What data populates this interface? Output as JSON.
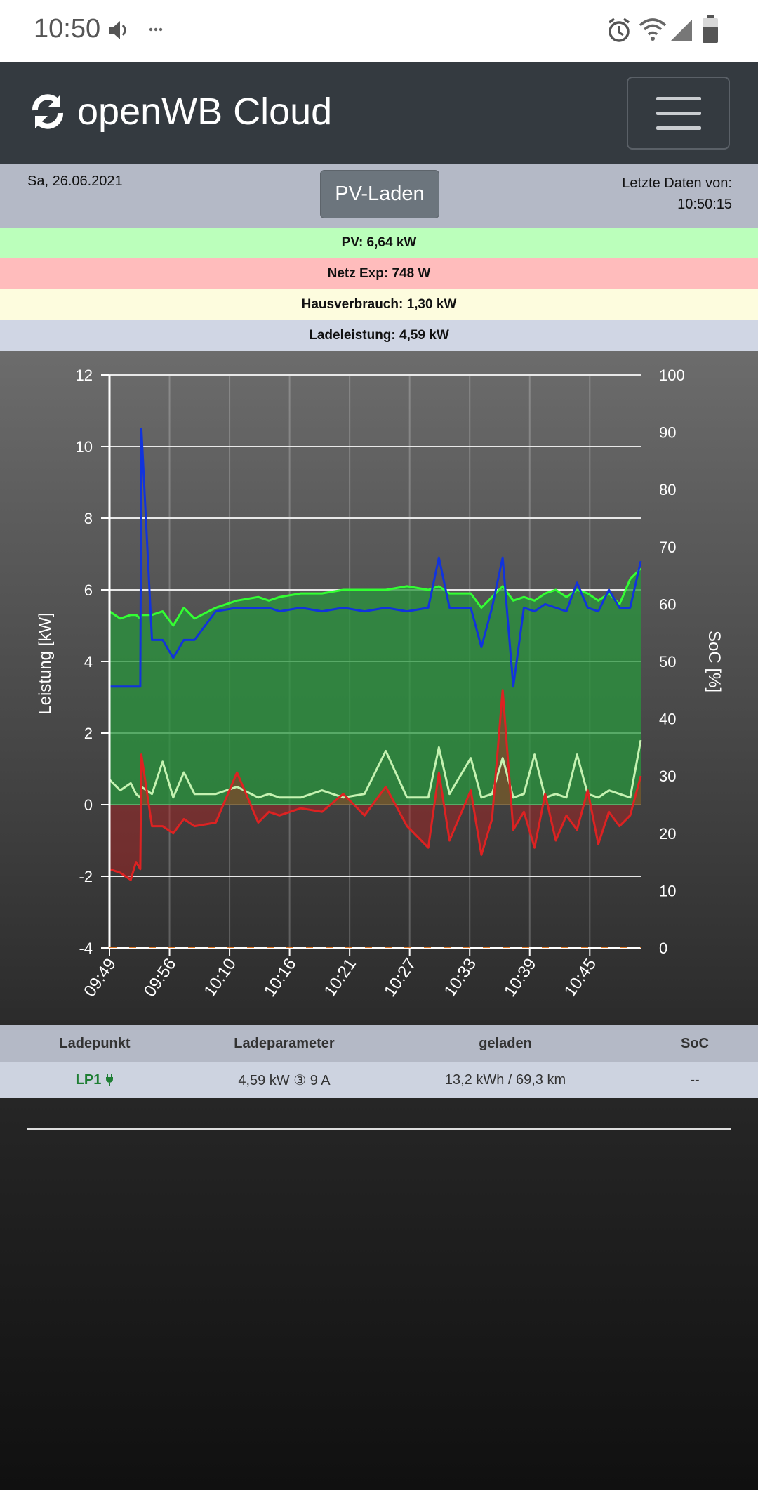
{
  "status_bar": {
    "time": "10:50",
    "icons": [
      "volume-icon",
      "more-icon",
      "alarm-icon",
      "wifi-icon",
      "signal-icon",
      "battery-icon"
    ]
  },
  "navbar": {
    "brand": "openWB Cloud",
    "brand_icon": "sync-icon",
    "menu_icon": "hamburger-menu-icon"
  },
  "info": {
    "date": "Sa, 26.06.2021",
    "mode_button": "PV-Laden",
    "last_data_label": "Letzte Daten von:",
    "last_data_time": "10:50:15"
  },
  "strips": [
    {
      "text": "PV: 6,64 kW",
      "color": "#bbffbb"
    },
    {
      "text": "Netz Exp: 748 W",
      "color": "#ffbcbc"
    },
    {
      "text": "Hausverbrauch: 1,30 kW",
      "color": "#fdfcde"
    },
    {
      "text": "Ladeleistung: 4,59 kW",
      "color": "#d0d6e4"
    }
  ],
  "chart_data": {
    "type": "line",
    "title": "",
    "ylabel": "Leistung [kW]",
    "y2label": "SoC [%]",
    "ylim": [
      -4,
      12
    ],
    "y2lim": [
      0,
      100
    ],
    "yticks": [
      "12",
      "10",
      "8",
      "6",
      "4",
      "2",
      "0",
      "-2",
      "-4"
    ],
    "y2ticks": [
      "100",
      "90",
      "80",
      "70",
      "60",
      "50",
      "40",
      "30",
      "20",
      "10",
      "0"
    ],
    "xticks": [
      "09:49",
      "09:56",
      "10:10",
      "10:16",
      "10:21",
      "10:27",
      "10:33",
      "10:39",
      "10:45"
    ],
    "x": [
      0,
      2,
      4,
      5,
      5.8,
      6,
      8,
      10,
      12,
      14,
      16,
      20,
      24,
      28,
      30,
      32,
      36,
      40,
      44,
      48,
      52,
      56,
      60,
      62,
      64,
      68,
      70,
      72,
      74,
      76,
      78,
      80,
      82,
      84,
      86,
      88,
      90,
      92,
      94,
      96,
      98,
      100
    ],
    "series": [
      {
        "name": "PV",
        "color": "#33ff33",
        "values": [
          5.4,
          5.2,
          5.3,
          5.3,
          5.2,
          5.3,
          5.3,
          5.4,
          5.0,
          5.5,
          5.2,
          5.5,
          5.7,
          5.8,
          5.7,
          5.8,
          5.9,
          5.9,
          6.0,
          6.0,
          6.0,
          6.1,
          6.0,
          6.1,
          5.9,
          5.9,
          5.5,
          5.8,
          6.1,
          5.7,
          5.8,
          5.7,
          5.9,
          6.0,
          5.8,
          6.0,
          5.9,
          5.7,
          5.9,
          5.6,
          6.3,
          6.6
        ]
      },
      {
        "name": "Ladeleistung",
        "color": "#1133dd",
        "values": [
          3.3,
          3.3,
          3.3,
          3.3,
          3.3,
          10.5,
          4.6,
          4.6,
          4.1,
          4.6,
          4.6,
          5.4,
          5.5,
          5.5,
          5.5,
          5.4,
          5.5,
          5.4,
          5.5,
          5.4,
          5.5,
          5.4,
          5.5,
          6.9,
          5.5,
          5.5,
          4.4,
          5.5,
          6.9,
          3.3,
          5.5,
          5.4,
          5.6,
          5.5,
          5.4,
          6.2,
          5.5,
          5.4,
          6.0,
          5.5,
          5.5,
          6.8
        ]
      },
      {
        "name": "Netz",
        "color": "#dd2222",
        "values": [
          -1.8,
          -1.9,
          -2.1,
          -1.6,
          -1.8,
          1.4,
          -0.6,
          -0.6,
          -0.8,
          -0.4,
          -0.6,
          -0.5,
          0.9,
          -0.5,
          -0.2,
          -0.3,
          -0.1,
          -0.2,
          0.3,
          -0.3,
          0.5,
          -0.6,
          -1.2,
          0.9,
          -1.0,
          0.4,
          -1.4,
          -0.4,
          3.2,
          -0.7,
          -0.2,
          -1.2,
          0.3,
          -1.0,
          -0.3,
          -0.7,
          0.4,
          -1.1,
          -0.2,
          -0.6,
          -0.3,
          0.8
        ]
      },
      {
        "name": "Hausverbrauch",
        "color": "#c5f2b1",
        "values": [
          0.7,
          0.4,
          0.6,
          0.3,
          0.2,
          0.5,
          0.3,
          1.2,
          0.2,
          0.9,
          0.3,
          0.3,
          0.5,
          0.2,
          0.3,
          0.2,
          0.2,
          0.4,
          0.2,
          0.3,
          1.5,
          0.2,
          0.2,
          1.6,
          0.3,
          1.3,
          0.2,
          0.3,
          1.3,
          0.2,
          0.3,
          1.4,
          0.2,
          0.3,
          0.2,
          1.4,
          0.3,
          0.2,
          0.4,
          0.3,
          0.2,
          1.8
        ]
      }
    ]
  },
  "table": {
    "headers": [
      "Ladepunkt",
      "Ladeparameter",
      "geladen",
      "SoC"
    ],
    "rows": [
      {
        "ladepunkt": "LP1",
        "ladepunkt_icon": "plug-icon",
        "parameter": "4,59 kW ③ 9 A",
        "geladen": "13,2 kWh / 69,3 km",
        "soc": "--"
      }
    ]
  }
}
